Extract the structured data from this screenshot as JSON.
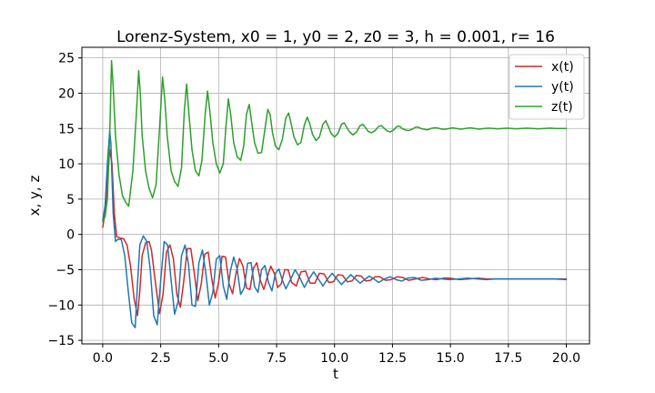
{
  "chart_data": {
    "type": "line",
    "title": "Lorenz-System, x0 = 1, y0 = 2, z0 = 3, h = 0.001, r= 16",
    "xlabel": "t",
    "ylabel": "x, y, z",
    "xlim": [
      -0.9,
      21.0
    ],
    "ylim": [
      -15.5,
      26.5
    ],
    "xticks": [
      0.0,
      2.5,
      5.0,
      7.5,
      10.0,
      12.5,
      15.0,
      17.5,
      20.0
    ],
    "xtick_labels": [
      "0.0",
      "2.5",
      "5.0",
      "7.5",
      "10.0",
      "12.5",
      "15.0",
      "17.5",
      "20.0"
    ],
    "yticks": [
      -15,
      -10,
      -5,
      0,
      5,
      10,
      15,
      20,
      25
    ],
    "ytick_labels": [
      "−15",
      "−10",
      "−5",
      "0",
      "5",
      "10",
      "15",
      "20",
      "25"
    ],
    "grid": true,
    "legend_position": "top-right",
    "series": [
      {
        "name": "x(t)",
        "color": "#d62728",
        "x": [
          0.0,
          0.1,
          0.2,
          0.3,
          0.4,
          0.5,
          0.6,
          0.75,
          0.9,
          1.05,
          1.2,
          1.35,
          1.5,
          1.6,
          1.7,
          1.85,
          2.0,
          2.1,
          2.3,
          2.45,
          2.6,
          2.75,
          2.9,
          3.05,
          3.2,
          3.35,
          3.5,
          3.65,
          3.8,
          3.95,
          4.1,
          4.25,
          4.4,
          4.55,
          4.7,
          4.85,
          5.0,
          5.15,
          5.3,
          5.45,
          5.6,
          5.75,
          5.9,
          6.05,
          6.2,
          6.35,
          6.5,
          6.65,
          6.8,
          6.95,
          7.1,
          7.25,
          7.4,
          7.55,
          7.7,
          7.85,
          8.0,
          8.15,
          8.35,
          8.55,
          8.75,
          8.95,
          9.15,
          9.35,
          9.55,
          9.75,
          9.95,
          10.15,
          10.35,
          10.55,
          10.75,
          10.95,
          11.15,
          11.35,
          11.55,
          11.75,
          11.95,
          12.2,
          12.45,
          12.7,
          12.95,
          13.2,
          13.5,
          13.8,
          14.1,
          14.4,
          14.7,
          15.0,
          15.4,
          15.8,
          16.2,
          16.6,
          17.0,
          17.5,
          18.0,
          18.5,
          19.0,
          19.5,
          20.0
        ],
        "y": [
          1.0,
          3.0,
          7.5,
          12.0,
          10.0,
          3.0,
          -0.3,
          -0.5,
          -0.6,
          -1.5,
          -4.5,
          -9.0,
          -11.5,
          -8.0,
          -3.0,
          -1.2,
          -1.0,
          -2.2,
          -7.5,
          -11.2,
          -8.5,
          -2.5,
          -1.5,
          -3.5,
          -8.5,
          -10.3,
          -6.5,
          -2.0,
          -2.0,
          -5.5,
          -9.4,
          -7.0,
          -2.8,
          -2.5,
          -6.2,
          -9.0,
          -6.8,
          -3.1,
          -3.2,
          -7.0,
          -8.4,
          -5.5,
          -3.4,
          -4.5,
          -7.6,
          -7.8,
          -4.8,
          -4.0,
          -6.5,
          -7.8,
          -6.0,
          -4.5,
          -5.5,
          -7.5,
          -7.0,
          -5.0,
          -5.0,
          -6.8,
          -7.3,
          -5.3,
          -5.2,
          -6.9,
          -6.9,
          -5.5,
          -5.6,
          -6.8,
          -6.7,
          -5.7,
          -5.8,
          -6.7,
          -6.6,
          -5.8,
          -5.9,
          -6.6,
          -6.5,
          -6.0,
          -6.0,
          -6.5,
          -6.4,
          -6.0,
          -6.1,
          -6.5,
          -6.3,
          -6.1,
          -6.3,
          -6.4,
          -6.2,
          -6.2,
          -6.4,
          -6.3,
          -6.2,
          -6.3,
          -6.3,
          -6.3,
          -6.3,
          -6.3,
          -6.3,
          -6.3,
          -6.3
        ]
      },
      {
        "name": "y(t)",
        "color": "#1f77b4",
        "x": [
          0.0,
          0.1,
          0.2,
          0.3,
          0.35,
          0.45,
          0.55,
          0.65,
          0.8,
          0.95,
          1.1,
          1.25,
          1.4,
          1.5,
          1.6,
          1.75,
          1.9,
          2.05,
          2.2,
          2.35,
          2.5,
          2.65,
          2.8,
          2.95,
          3.1,
          3.25,
          3.4,
          3.55,
          3.7,
          3.85,
          4.0,
          4.15,
          4.3,
          4.45,
          4.6,
          4.75,
          4.9,
          5.05,
          5.2,
          5.35,
          5.5,
          5.65,
          5.8,
          5.95,
          6.1,
          6.25,
          6.4,
          6.55,
          6.7,
          6.85,
          7.0,
          7.15,
          7.3,
          7.45,
          7.6,
          7.75,
          7.9,
          8.1,
          8.3,
          8.5,
          8.7,
          8.9,
          9.1,
          9.3,
          9.5,
          9.7,
          9.9,
          10.1,
          10.3,
          10.5,
          10.7,
          10.9,
          11.1,
          11.3,
          11.5,
          11.7,
          11.9,
          12.15,
          12.4,
          12.65,
          12.9,
          13.15,
          13.45,
          13.75,
          14.05,
          14.35,
          14.65,
          14.95,
          15.35,
          15.75,
          16.15,
          16.55,
          16.95,
          17.45,
          17.95,
          18.45,
          18.95,
          19.45,
          20.0
        ],
        "y": [
          2.0,
          4.0,
          10.0,
          14.7,
          13.0,
          3.0,
          -1.0,
          -0.7,
          -0.7,
          -3.0,
          -8.0,
          -12.5,
          -13.2,
          -7.0,
          -1.5,
          -0.2,
          -1.0,
          -5.0,
          -11.5,
          -12.8,
          -6.5,
          -1.0,
          -1.5,
          -6.5,
          -11.3,
          -9.5,
          -3.0,
          -1.5,
          -4.2,
          -10.0,
          -10.2,
          -4.0,
          -2.2,
          -5.5,
          -10.0,
          -8.2,
          -3.5,
          -3.0,
          -7.3,
          -9.2,
          -5.3,
          -3.2,
          -4.9,
          -8.5,
          -7.6,
          -4.1,
          -4.0,
          -7.4,
          -8.2,
          -5.0,
          -4.4,
          -6.8,
          -8.0,
          -5.5,
          -4.9,
          -6.5,
          -7.7,
          -6.4,
          -5.0,
          -6.1,
          -7.5,
          -6.3,
          -5.3,
          -6.3,
          -7.3,
          -6.3,
          -5.5,
          -6.3,
          -7.1,
          -6.4,
          -5.7,
          -6.3,
          -6.9,
          -6.4,
          -5.9,
          -6.3,
          -6.8,
          -6.3,
          -6.0,
          -6.4,
          -6.6,
          -6.2,
          -6.1,
          -6.5,
          -6.4,
          -6.2,
          -6.3,
          -6.4,
          -6.3,
          -6.2,
          -6.3,
          -6.4,
          -6.3,
          -6.3,
          -6.3,
          -6.3,
          -6.3,
          -6.3,
          -6.4
        ]
      },
      {
        "name": "z(t)",
        "color": "#2ca02c",
        "x": [
          0.0,
          0.1,
          0.2,
          0.3,
          0.38,
          0.45,
          0.55,
          0.7,
          0.85,
          1.0,
          1.12,
          1.3,
          1.45,
          1.55,
          1.62,
          1.7,
          1.85,
          2.0,
          2.15,
          2.3,
          2.45,
          2.58,
          2.68,
          2.78,
          2.95,
          3.1,
          3.25,
          3.4,
          3.52,
          3.62,
          3.72,
          3.85,
          4.0,
          4.15,
          4.28,
          4.42,
          4.52,
          4.62,
          4.75,
          4.9,
          5.05,
          5.2,
          5.32,
          5.42,
          5.52,
          5.65,
          5.8,
          5.95,
          6.08,
          6.2,
          6.32,
          6.42,
          6.55,
          6.7,
          6.85,
          6.98,
          7.12,
          7.22,
          7.32,
          7.45,
          7.6,
          7.75,
          7.9,
          8.02,
          8.12,
          8.25,
          8.4,
          8.55,
          8.7,
          8.82,
          8.92,
          9.05,
          9.2,
          9.35,
          9.5,
          9.62,
          9.72,
          9.85,
          10.0,
          10.15,
          10.3,
          10.42,
          10.52,
          10.65,
          10.8,
          10.95,
          11.1,
          11.22,
          11.32,
          11.45,
          11.6,
          11.75,
          11.9,
          12.02,
          12.12,
          12.25,
          12.4,
          12.55,
          12.7,
          12.82,
          12.92,
          13.05,
          13.2,
          13.35,
          13.5,
          13.62,
          13.72,
          13.85,
          14.0,
          14.15,
          14.3,
          14.42,
          14.52,
          14.65,
          14.8,
          14.95,
          15.1,
          15.25,
          15.45,
          15.65,
          15.85,
          16.05,
          16.25,
          16.45,
          16.65,
          16.85,
          17.05,
          17.25,
          17.45,
          17.65,
          17.85,
          18.05,
          18.3,
          18.55,
          18.8,
          19.05,
          19.3,
          19.55,
          19.8,
          20.0
        ],
        "y": [
          1.8,
          2.5,
          5.0,
          14.0,
          24.6,
          21.0,
          14.0,
          8.5,
          5.5,
          4.5,
          4.0,
          9.0,
          17.0,
          23.2,
          20.0,
          14.0,
          9.0,
          6.5,
          5.2,
          7.0,
          15.0,
          22.3,
          19.0,
          14.0,
          9.0,
          7.5,
          6.8,
          9.5,
          17.5,
          21.3,
          17.0,
          12.0,
          9.0,
          8.3,
          10.5,
          17.0,
          20.3,
          17.5,
          13.0,
          10.0,
          8.7,
          10.0,
          15.5,
          19.2,
          17.0,
          13.0,
          11.0,
          10.5,
          12.5,
          17.0,
          18.4,
          16.0,
          13.0,
          11.5,
          11.6,
          14.5,
          17.7,
          17.0,
          14.5,
          12.5,
          12.0,
          13.5,
          16.5,
          17.2,
          15.8,
          13.8,
          12.7,
          13.0,
          15.5,
          16.6,
          15.8,
          14.2,
          13.3,
          13.8,
          15.6,
          16.1,
          15.4,
          14.3,
          13.8,
          14.3,
          15.6,
          15.8,
          15.2,
          14.5,
          14.1,
          14.5,
          15.4,
          15.6,
          15.2,
          14.6,
          14.4,
          14.7,
          15.3,
          15.4,
          15.1,
          14.7,
          14.5,
          14.8,
          15.3,
          15.3,
          15.0,
          14.8,
          14.7,
          14.9,
          15.2,
          15.2,
          15.0,
          14.9,
          14.8,
          15.0,
          15.1,
          15.1,
          15.0,
          14.9,
          14.9,
          15.0,
          15.1,
          15.0,
          14.9,
          15.0,
          15.1,
          15.0,
          14.9,
          15.0,
          15.05,
          15.0,
          14.95,
          15.0,
          15.05,
          15.0,
          14.95,
          15.0,
          15.05,
          15.0,
          14.95,
          15.0,
          15.05,
          15.0,
          15.0,
          15.0
        ]
      }
    ]
  }
}
